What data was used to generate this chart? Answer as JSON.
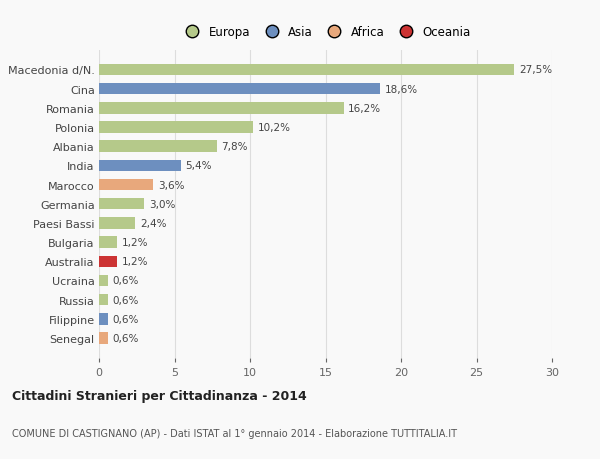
{
  "categories": [
    "Macedonia d/N.",
    "Cina",
    "Romania",
    "Polonia",
    "Albania",
    "India",
    "Marocco",
    "Germania",
    "Paesi Bassi",
    "Bulgaria",
    "Australia",
    "Ucraina",
    "Russia",
    "Filippine",
    "Senegal"
  ],
  "values": [
    27.5,
    18.6,
    16.2,
    10.2,
    7.8,
    5.4,
    3.6,
    3.0,
    2.4,
    1.2,
    1.2,
    0.6,
    0.6,
    0.6,
    0.6
  ],
  "labels": [
    "27,5%",
    "18,6%",
    "16,2%",
    "10,2%",
    "7,8%",
    "5,4%",
    "3,6%",
    "3,0%",
    "2,4%",
    "1,2%",
    "1,2%",
    "0,6%",
    "0,6%",
    "0,6%",
    "0,6%"
  ],
  "colors": [
    "#b5c98a",
    "#6d8fbf",
    "#b5c98a",
    "#b5c98a",
    "#b5c98a",
    "#6d8fbf",
    "#e8a87c",
    "#b5c98a",
    "#b5c98a",
    "#b5c98a",
    "#cc3333",
    "#b5c98a",
    "#b5c98a",
    "#6d8fbf",
    "#e8a87c"
  ],
  "legend_labels": [
    "Europa",
    "Asia",
    "Africa",
    "Oceania"
  ],
  "legend_colors": [
    "#b5c98a",
    "#6d8fbf",
    "#e8a87c",
    "#cc3333"
  ],
  "title": "Cittadini Stranieri per Cittadinanza - 2014",
  "subtitle": "COMUNE DI CASTIGNANO (AP) - Dati ISTAT al 1° gennaio 2014 - Elaborazione TUTTITALIA.IT",
  "xlim": [
    0,
    30
  ],
  "xticks": [
    0,
    5,
    10,
    15,
    20,
    25,
    30
  ],
  "background_color": "#f9f9f9",
  "grid_color": "#dddddd",
  "bar_height": 0.6
}
